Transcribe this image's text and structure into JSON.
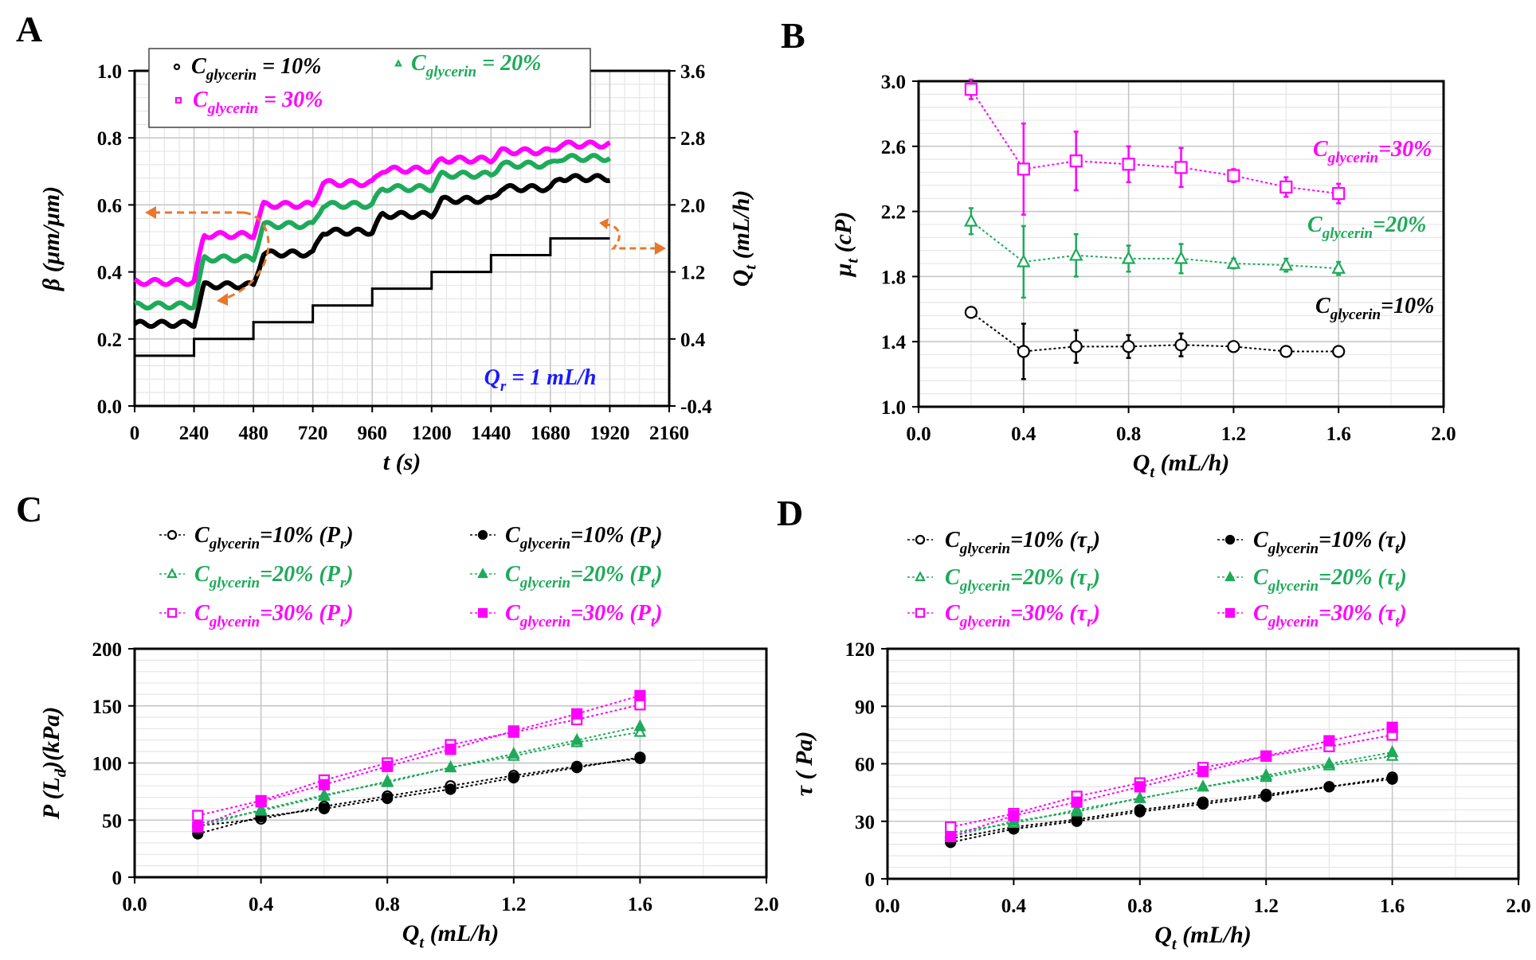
{
  "colors": {
    "c10": "#000000",
    "c20": "#1eaa5a",
    "c30": "#ff00ff",
    "arrow": "#e8782a",
    "annot": "#1a1aff"
  },
  "chart_data": [
    {
      "panel": "A",
      "type": "line",
      "xlabel": [
        "t (s)"
      ],
      "ylabel": [
        "β (μm/μm)"
      ],
      "y2label": [
        "Q",
        "t",
        " (mL/h)"
      ],
      "xlim": [
        0,
        2160
      ],
      "ylim": [
        0,
        1.0
      ],
      "y2lim": [
        -0.4,
        3.6
      ],
      "xticks": [
        "0",
        "240",
        "480",
        "720",
        "960",
        "1200",
        "1440",
        "1680",
        "1920",
        "2160"
      ],
      "yticks": [
        "0.0",
        "0.2",
        "0.4",
        "0.6",
        "0.8",
        "1.0"
      ],
      "y2ticks": [
        "-0.4",
        "0.4",
        "1.2",
        "2.0",
        "2.8",
        "3.6"
      ],
      "grid": true,
      "legend": "top-left",
      "annotation": [
        "Q",
        "r",
        " = 1 mL/h"
      ],
      "step_times": [
        0,
        240,
        480,
        720,
        960,
        1200,
        1440,
        1680,
        1920
      ],
      "series": [
        {
          "label": [
            "C",
            "glycerin",
            " = 10%"
          ],
          "color_key": "c10",
          "marker": "circle-open",
          "levels": [
            0.245,
            0.36,
            0.455,
            0.52,
            0.57,
            0.615,
            0.65,
            0.68
          ]
        },
        {
          "label": [
            "C",
            "glycerin",
            " = 20%"
          ],
          "color_key": "c20",
          "marker": "triangle-open",
          "levels": [
            0.3,
            0.44,
            0.54,
            0.6,
            0.65,
            0.69,
            0.72,
            0.74
          ]
        },
        {
          "label": [
            "C",
            "glycerin",
            " = 30%"
          ],
          "color_key": "c30",
          "marker": "square-open",
          "levels": [
            0.37,
            0.51,
            0.6,
            0.665,
            0.705,
            0.735,
            0.76,
            0.78
          ]
        }
      ],
      "qt_series": {
        "axis": "right",
        "values": [
          0.2,
          0.4,
          0.6,
          0.8,
          1.0,
          1.2,
          1.4,
          1.6
        ]
      }
    },
    {
      "panel": "B",
      "type": "line",
      "xlabel": [
        "Q",
        "t",
        " (mL/h)"
      ],
      "ylabel": [
        "μ",
        "t",
        " (cP)"
      ],
      "xlim": [
        0,
        2.0
      ],
      "ylim": [
        1.0,
        3.0
      ],
      "xticks": [
        "0.0",
        "0.4",
        "0.8",
        "1.2",
        "1.6",
        "2.0"
      ],
      "yticks": [
        "1.0",
        "1.4",
        "1.8",
        "2.2",
        "2.6",
        "3.0"
      ],
      "grid": true,
      "x": [
        0.2,
        0.4,
        0.6,
        0.8,
        1.0,
        1.2,
        1.4,
        1.6
      ],
      "series": [
        {
          "label": [
            "C",
            "glycerin",
            "=30%"
          ],
          "color_key": "c30",
          "marker": "square-open",
          "values": [
            2.95,
            2.46,
            2.51,
            2.49,
            2.47,
            2.42,
            2.35,
            2.31
          ],
          "error": [
            0.06,
            0.28,
            0.18,
            0.11,
            0.12,
            0.04,
            0.06,
            0.06
          ]
        },
        {
          "label": [
            "C",
            "glycerin",
            "=20%"
          ],
          "color_key": "c20",
          "marker": "triangle-open",
          "values": [
            2.14,
            1.89,
            1.93,
            1.91,
            1.91,
            1.88,
            1.87,
            1.85
          ],
          "error": [
            0.08,
            0.22,
            0.13,
            0.08,
            0.09,
            0.03,
            0.04,
            0.04
          ]
        },
        {
          "label": [
            "C",
            "glycerin",
            "=10%"
          ],
          "color_key": "c10",
          "marker": "circle-open",
          "values": [
            1.58,
            1.34,
            1.37,
            1.37,
            1.38,
            1.37,
            1.34,
            1.34
          ],
          "error": [
            0.03,
            0.17,
            0.1,
            0.07,
            0.07,
            0.02,
            0.03,
            0.03
          ]
        }
      ]
    },
    {
      "panel": "C",
      "type": "line",
      "xlabel": [
        "Q",
        "t",
        " (mL/h)"
      ],
      "ylabel": [
        "P (L",
        "d",
        ")(kPa)"
      ],
      "xlim": [
        0,
        2.0
      ],
      "ylim": [
        0,
        200
      ],
      "xticks": [
        "0.0",
        "0.4",
        "0.8",
        "1.2",
        "1.6",
        "2.0"
      ],
      "yticks": [
        "0",
        "50",
        "100",
        "150",
        "200"
      ],
      "grid": true,
      "legend": "top",
      "x": [
        0.2,
        0.4,
        0.6,
        0.8,
        1.0,
        1.2,
        1.4,
        1.6
      ],
      "series": [
        {
          "label": [
            "C",
            "glycerin",
            "=10% (P",
            "r",
            ")"
          ],
          "color_key": "c10",
          "marker": "circle-open",
          "values": [
            45,
            51,
            62,
            71,
            80,
            89,
            97,
            104
          ]
        },
        {
          "label": [
            "C",
            "glycerin",
            "=10% (P",
            "t",
            ")"
          ],
          "color_key": "c10",
          "marker": "circle-filled",
          "values": [
            38,
            53,
            60,
            69,
            77,
            87,
            96,
            105
          ]
        },
        {
          "label": [
            "C",
            "glycerin",
            "=20% (P",
            "r",
            ")"
          ],
          "color_key": "c20",
          "marker": "triangle-open",
          "values": [
            47,
            58,
            71,
            84,
            96,
            106,
            118,
            127
          ]
        },
        {
          "label": [
            "C",
            "glycerin",
            "=20% (P",
            "t",
            ")"
          ],
          "color_key": "c20",
          "marker": "triangle-filled",
          "values": [
            44,
            59,
            72,
            83,
            96,
            108,
            120,
            132
          ]
        },
        {
          "label": [
            "C",
            "glycerin",
            "=30% (P",
            "r",
            ")"
          ],
          "color_key": "c30",
          "marker": "square-open",
          "values": [
            54,
            67,
            85,
            100,
            116,
            127,
            138,
            151
          ]
        },
        {
          "label": [
            "C",
            "glycerin",
            "=30% (P",
            "t",
            ")"
          ],
          "color_key": "c30",
          "marker": "square-filled",
          "values": [
            44,
            66,
            81,
            97,
            112,
            128,
            143,
            159
          ]
        }
      ]
    },
    {
      "panel": "D",
      "type": "line",
      "xlabel": [
        "Q",
        "t",
        " (mL/h)"
      ],
      "ylabel": [
        "τ ( Pa)"
      ],
      "xlim": [
        0,
        2.0
      ],
      "ylim": [
        0,
        120
      ],
      "xticks": [
        "0.0",
        "0.4",
        "0.8",
        "1.2",
        "1.6",
        "2.0"
      ],
      "yticks": [
        "0",
        "30",
        "60",
        "90",
        "120"
      ],
      "grid": true,
      "legend": "top",
      "x": [
        0.2,
        0.4,
        0.6,
        0.8,
        1.0,
        1.2,
        1.4,
        1.6
      ],
      "series": [
        {
          "label": [
            "C",
            "glycerin",
            "=10% (τ",
            "r",
            ")"
          ],
          "color_key": "c10",
          "marker": "circle-open",
          "values": [
            21,
            27,
            31,
            36,
            40,
            44,
            48,
            53
          ]
        },
        {
          "label": [
            "C",
            "glycerin",
            "=10% (τ",
            "t",
            ")"
          ],
          "color_key": "c10",
          "marker": "circle-filled",
          "values": [
            19,
            26,
            30,
            35,
            39,
            43,
            48,
            52
          ]
        },
        {
          "label": [
            "C",
            "glycerin",
            "=20% (τ",
            "r",
            ")"
          ],
          "color_key": "c20",
          "marker": "triangle-open",
          "values": [
            24,
            29,
            36,
            42,
            48,
            53,
            59,
            64
          ]
        },
        {
          "label": [
            "C",
            "glycerin",
            "=20% (τ",
            "t",
            ")"
          ],
          "color_key": "c20",
          "marker": "triangle-filled",
          "values": [
            22,
            30,
            35,
            42,
            48,
            54,
            60,
            66
          ]
        },
        {
          "label": [
            "C",
            "glycerin",
            "=30% (τ",
            "r",
            ")"
          ],
          "color_key": "c30",
          "marker": "square-open",
          "values": [
            27,
            34,
            43,
            50,
            58,
            64,
            69,
            75
          ]
        },
        {
          "label": [
            "C",
            "glycerin",
            "=30% (τ",
            "t",
            ")"
          ],
          "color_key": "c30",
          "marker": "square-filled",
          "values": [
            22,
            33,
            40,
            48,
            56,
            64,
            72,
            79
          ]
        }
      ]
    }
  ]
}
